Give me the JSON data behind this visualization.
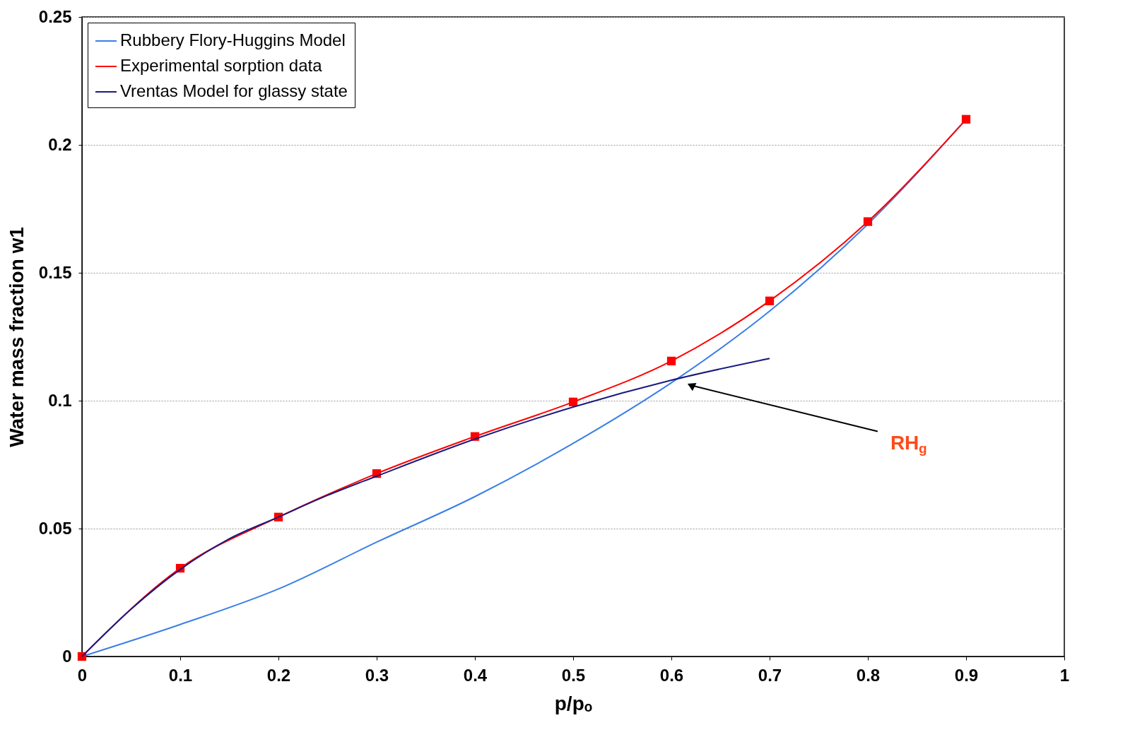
{
  "chart_data": {
    "type": "line",
    "xlabel": "p/pₒ",
    "ylabel": "Water mass fraction w1",
    "xlim": [
      0,
      1
    ],
    "ylim": [
      0,
      0.25
    ],
    "xticks": [
      0,
      0.1,
      0.2,
      0.3,
      0.4,
      0.5,
      0.6,
      0.7,
      0.8,
      0.9,
      1
    ],
    "yticks": [
      0,
      0.05,
      0.1,
      0.15,
      0.2,
      0.25
    ],
    "grid": "y",
    "legend": "top left",
    "line_style": "solid",
    "series": [
      {
        "name": "Rubbery Flory-Huggins Model",
        "color": "#3a7fe8",
        "marker": "none",
        "x": [
          0,
          0.1,
          0.2,
          0.3,
          0.4,
          0.5,
          0.6,
          0.7,
          0.8,
          0.9
        ],
        "values": [
          0,
          0.0125,
          0.0264,
          0.0447,
          0.0625,
          0.0833,
          0.107,
          0.135,
          0.169,
          0.21
        ]
      },
      {
        "name": "Experimental sorption data",
        "color": "#ff0000",
        "marker": "square",
        "x": [
          0,
          0.1,
          0.2,
          0.3,
          0.4,
          0.5,
          0.6,
          0.7,
          0.8,
          0.9
        ],
        "values": [
          0,
          0.0345,
          0.0545,
          0.0715,
          0.086,
          0.0995,
          0.1155,
          0.139,
          0.17,
          0.21
        ]
      },
      {
        "name": "Vrentas Model for glassy state",
        "color": "#1a1a80",
        "marker": "none",
        "x": [
          0,
          0.05,
          0.1,
          0.15,
          0.2,
          0.25,
          0.3,
          0.4,
          0.5,
          0.6,
          0.7
        ],
        "values": [
          0,
          0.0185,
          0.034,
          0.046,
          0.0545,
          0.063,
          0.0705,
          0.085,
          0.0975,
          0.108,
          0.1165
        ]
      }
    ],
    "annotations": [
      {
        "text": "RH$_{g}$",
        "x": 0.62,
        "y": 0.106
      }
    ]
  }
}
